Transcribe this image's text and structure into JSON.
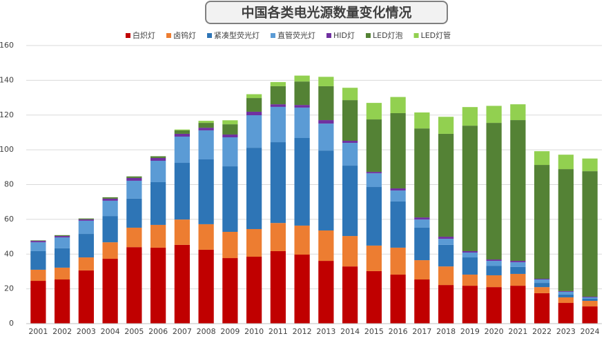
{
  "chart_data": {
    "type": "stacked_bar",
    "title": "中国各类电光源数量变化情况",
    "categories": [
      "2001",
      "2002",
      "2003",
      "2004",
      "2005",
      "2006",
      "2007",
      "2008",
      "2009",
      "2010",
      "2011",
      "2012",
      "2013",
      "2014",
      "2015",
      "2016",
      "2017",
      "2018",
      "2019",
      "2020",
      "2021",
      "2022",
      "2023",
      "2024"
    ],
    "series": [
      {
        "name": "白炽灯",
        "color": "#c00000",
        "values": [
          24.6,
          25.4,
          30.6,
          37.3,
          44,
          43.7,
          45.3,
          42.5,
          37.7,
          38.5,
          41.7,
          39.7,
          36.1,
          32.9,
          30.2,
          28.2,
          25.4,
          22.2,
          21.8,
          21,
          21.8,
          17.5,
          11.9,
          9.9
        ]
      },
      {
        "name": "卤钨灯",
        "color": "#ed7d31",
        "values": [
          6.4,
          6.8,
          7.5,
          9.5,
          11.2,
          13.1,
          14.6,
          14.7,
          15.1,
          15.9,
          16.2,
          16.7,
          17.5,
          17.5,
          14.7,
          15.5,
          11.1,
          10.7,
          6.4,
          6.8,
          6.8,
          3.5,
          3.2,
          3.2
        ]
      },
      {
        "name": "紧凑型荧光灯",
        "color": "#2e75b6",
        "values": [
          10.7,
          11.1,
          13.5,
          15.1,
          16.7,
          24.6,
          32.6,
          37.3,
          37.7,
          46.8,
          46.5,
          50.4,
          46,
          40.5,
          33.7,
          26.6,
          18.7,
          12.4,
          9.9,
          5.5,
          4,
          2.4,
          1.6,
          1.2
        ]
      },
      {
        "name": "直管荧光灯",
        "color": "#5b9bd5",
        "values": [
          5.1,
          6.3,
          7.6,
          8.8,
          10.3,
          12.3,
          15.1,
          16.7,
          16.7,
          18.7,
          20.3,
          17.5,
          15.5,
          13.1,
          7.9,
          6.3,
          4.7,
          3.5,
          2.8,
          2.8,
          2.7,
          2,
          1.6,
          0.8
        ]
      },
      {
        "name": "HID灯",
        "color": "#7030a0",
        "values": [
          0.8,
          0.8,
          0.8,
          1.2,
          1.6,
          1.6,
          1.6,
          1.5,
          1.6,
          2,
          1.5,
          1.5,
          2,
          1.2,
          0.8,
          1.2,
          1.2,
          1.2,
          0.8,
          0.8,
          0.8,
          0.4,
          0.4,
          0.4
        ]
      },
      {
        "name": "LED灯泡",
        "color": "#548235",
        "values": [
          0.3,
          0.5,
          0.5,
          0.8,
          0.9,
          1,
          2,
          2.8,
          5.9,
          7.9,
          10.4,
          13.5,
          19.5,
          23.4,
          30.2,
          43.3,
          51.2,
          59.2,
          72.2,
          78.6,
          81,
          65.5,
          70.2,
          72.2
        ]
      },
      {
        "name": "LED灯管",
        "color": "#92d050",
        "values": [
          0,
          0,
          0,
          0,
          0,
          0,
          0.5,
          1.2,
          2.3,
          2.2,
          2.4,
          3.4,
          5.4,
          7.1,
          9.5,
          9.3,
          9.2,
          9.8,
          10.7,
          9.8,
          9.1,
          7.9,
          8.3,
          7.3
        ]
      }
    ],
    "ylim": [
      0,
      160
    ],
    "yticks": [
      0,
      20,
      40,
      60,
      80,
      100,
      120,
      140,
      160
    ],
    "grid": true
  }
}
